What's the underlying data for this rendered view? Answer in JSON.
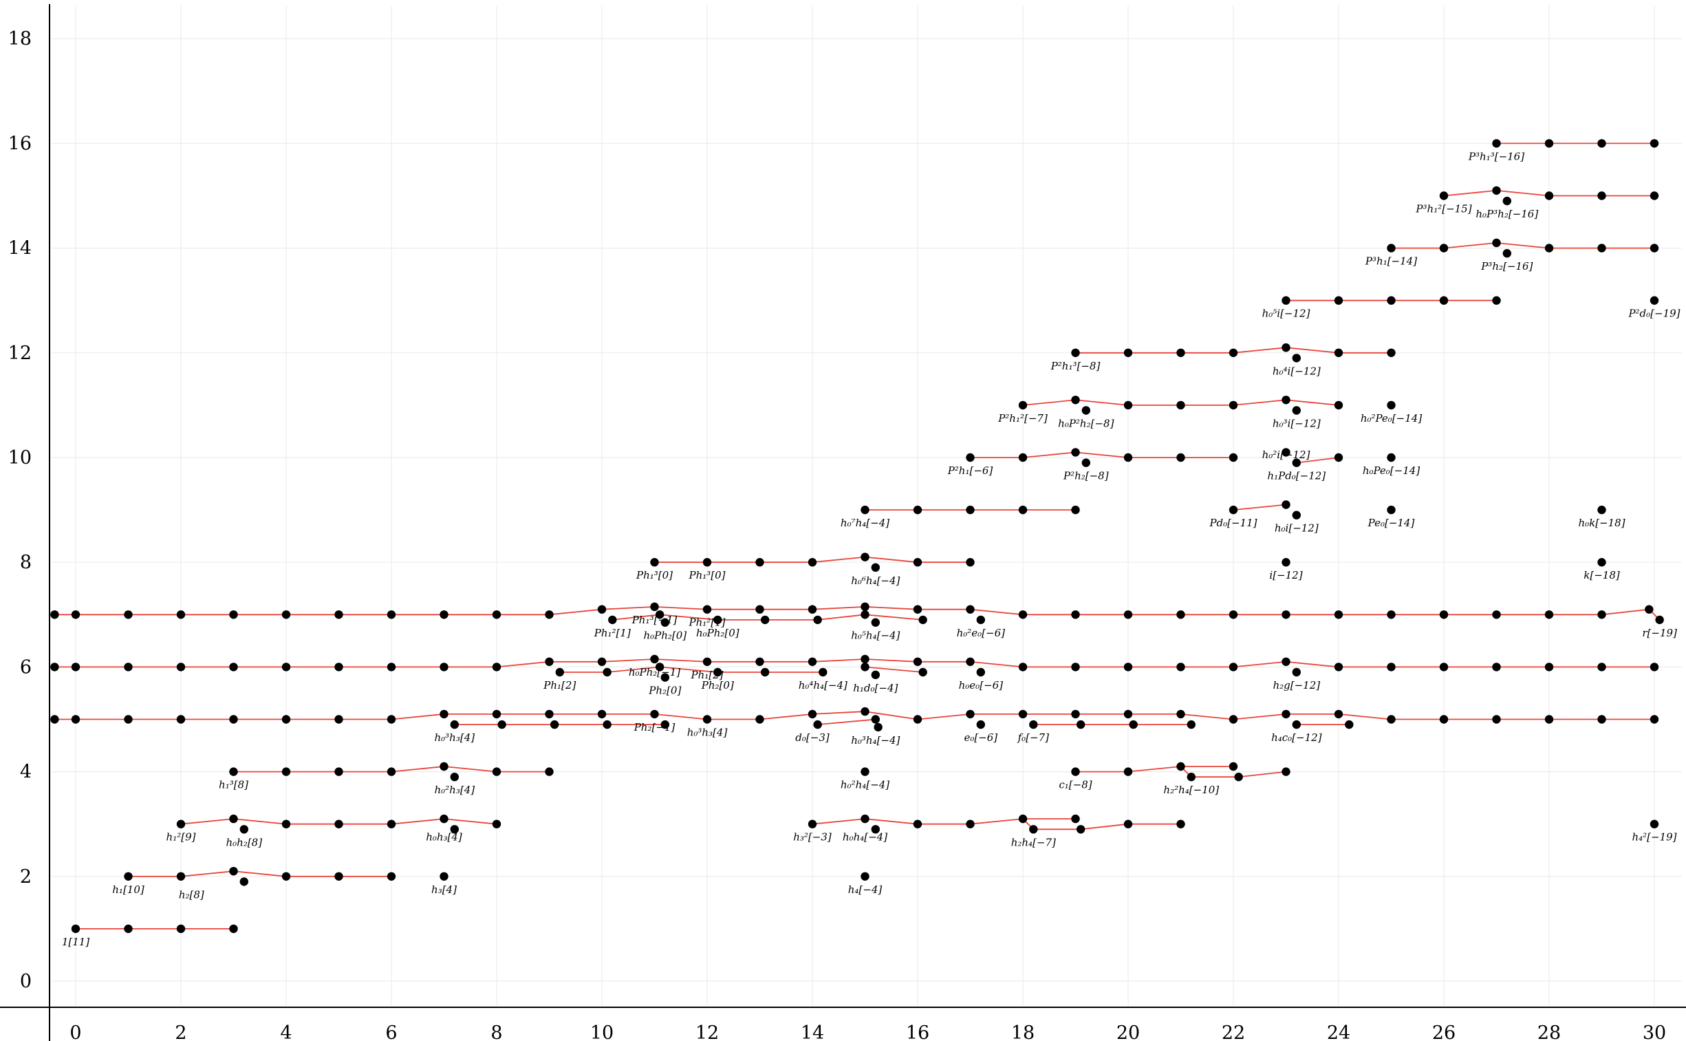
{
  "chart_data": {
    "type": "scatter",
    "title": "",
    "xlabel": "",
    "ylabel": "",
    "xlim": [
      -0.5,
      30.5
    ],
    "ylim": [
      -0.5,
      18.5
    ],
    "xticks": [
      "0",
      "2",
      "4",
      "6",
      "8",
      "10",
      "12",
      "14",
      "16",
      "18",
      "20",
      "22",
      "24",
      "26",
      "28",
      "30"
    ],
    "yticks": [
      "0",
      "2",
      "4",
      "6",
      "8",
      "10",
      "12",
      "14",
      "16",
      "18"
    ],
    "grid": true,
    "line_color": "#e8443a",
    "point_color": "#000000",
    "labels": [
      {
        "x": 0,
        "y": 1,
        "text": "1[11]"
      },
      {
        "x": 1,
        "y": 2,
        "text": "h₁[10]"
      },
      {
        "x": 2.2,
        "y": 1.9,
        "text": "h₂[8]"
      },
      {
        "x": 7,
        "y": 2,
        "text": "h₃[4]"
      },
      {
        "x": 15,
        "y": 2,
        "text": "h₄[−4]"
      },
      {
        "x": 2,
        "y": 3,
        "text": "h₁²[9]"
      },
      {
        "x": 3.2,
        "y": 2.9,
        "text": "h₀h₂[8]"
      },
      {
        "x": 7,
        "y": 3,
        "text": "h₀h₃[4]"
      },
      {
        "x": 14,
        "y": 3,
        "text": "h₃²[−3]"
      },
      {
        "x": 15,
        "y": 3,
        "text": "h₀h₄[−4]"
      },
      {
        "x": 18.2,
        "y": 2.9,
        "text": "h₂h₄[−7]"
      },
      {
        "x": 30,
        "y": 3,
        "text": "h₄²[−19]"
      },
      {
        "x": 3,
        "y": 4,
        "text": "h₁³[8]"
      },
      {
        "x": 7.2,
        "y": 3.9,
        "text": "h₀²h₃[4]"
      },
      {
        "x": 15,
        "y": 4,
        "text": "h₀²h₄[−4]"
      },
      {
        "x": 19,
        "y": 4,
        "text": "c₁[−8]"
      },
      {
        "x": 21.2,
        "y": 3.9,
        "text": "h₂²h₄[−10]"
      },
      {
        "x": 7.2,
        "y": 4.9,
        "text": "h₀³h₃[4]"
      },
      {
        "x": 11,
        "y": 5.1,
        "text": "Ph₂[−1]"
      },
      {
        "x": 12,
        "y": 5,
        "text": "h₀³h₃[4]"
      },
      {
        "x": 14,
        "y": 4.9,
        "text": "d₀[−3]"
      },
      {
        "x": 15.2,
        "y": 4.85,
        "text": "h₀³h₄[−4]"
      },
      {
        "x": 17.2,
        "y": 4.9,
        "text": "e₀[−6]"
      },
      {
        "x": 18.2,
        "y": 4.9,
        "text": "f₀[−7]"
      },
      {
        "x": 23.2,
        "y": 4.9,
        "text": "h₄c₀[−12]"
      },
      {
        "x": 9.2,
        "y": 5.9,
        "text": "Ph₁[2]"
      },
      {
        "x": 11,
        "y": 6.15,
        "text": "h₀Ph₂[−1]"
      },
      {
        "x": 11.2,
        "y": 5.8,
        "text": "Ph₂[0]"
      },
      {
        "x": 12,
        "y": 6.1,
        "text": "Ph₁[2]"
      },
      {
        "x": 12.2,
        "y": 5.9,
        "text": "Ph₂[0]"
      },
      {
        "x": 14.2,
        "y": 5.9,
        "text": "h₀⁴h₄[−4]"
      },
      {
        "x": 15.2,
        "y": 5.85,
        "text": "h₁d₀[−4]"
      },
      {
        "x": 17.2,
        "y": 5.9,
        "text": "h₀e₀[−6]"
      },
      {
        "x": 23.2,
        "y": 5.9,
        "text": "h₂g[−12]"
      },
      {
        "x": 10.2,
        "y": 6.9,
        "text": "Ph₁²[1]"
      },
      {
        "x": 11,
        "y": 7.15,
        "text": "Ph₁³[−1]"
      },
      {
        "x": 11.2,
        "y": 6.85,
        "text": "h₀Ph₂[0]"
      },
      {
        "x": 12,
        "y": 7.1,
        "text": "Ph₁²[1]"
      },
      {
        "x": 12.2,
        "y": 6.9,
        "text": "h₀Ph₂[0]"
      },
      {
        "x": 15.2,
        "y": 6.85,
        "text": "h₀⁵h₄[−4]"
      },
      {
        "x": 17.2,
        "y": 6.9,
        "text": "h₀²e₀[−6]"
      },
      {
        "x": 30.1,
        "y": 6.9,
        "text": "r[−19]"
      },
      {
        "x": 11,
        "y": 8,
        "text": "Ph₁³[0]"
      },
      {
        "x": 12,
        "y": 8,
        "text": "Ph₁³[0]"
      },
      {
        "x": 15.2,
        "y": 7.9,
        "text": "h₀⁶h₄[−4]"
      },
      {
        "x": 23,
        "y": 8,
        "text": "i[−12]"
      },
      {
        "x": 29,
        "y": 8,
        "text": "k[−18]"
      },
      {
        "x": 15,
        "y": 9,
        "text": "h₀⁷h₄[−4]"
      },
      {
        "x": 22,
        "y": 9,
        "text": "Pd₀[−11]"
      },
      {
        "x": 23.2,
        "y": 8.9,
        "text": "h₀i[−12]"
      },
      {
        "x": 25,
        "y": 9,
        "text": "Pe₀[−14]"
      },
      {
        "x": 29,
        "y": 9,
        "text": "h₀k[−18]"
      },
      {
        "x": 17,
        "y": 10,
        "text": "P²h₁[−6]"
      },
      {
        "x": 19.2,
        "y": 9.9,
        "text": "P²h₂[−8]"
      },
      {
        "x": 23,
        "y": 10.3,
        "text": "h₀²i[−12]"
      },
      {
        "x": 23.2,
        "y": 9.9,
        "text": "h₁Pd₀[−12]"
      },
      {
        "x": 25,
        "y": 10,
        "text": "h₀Pe₀[−14]"
      },
      {
        "x": 18,
        "y": 11,
        "text": "P²h₁²[−7]"
      },
      {
        "x": 19.2,
        "y": 10.9,
        "text": "h₀P²h₂[−8]"
      },
      {
        "x": 23.2,
        "y": 10.9,
        "text": "h₀³i[−12]"
      },
      {
        "x": 25,
        "y": 11,
        "text": "h₀²Pe₀[−14]"
      },
      {
        "x": 19,
        "y": 12,
        "text": "P²h₁³[−8]"
      },
      {
        "x": 23.2,
        "y": 11.9,
        "text": "h₀⁴i[−12]"
      },
      {
        "x": 23,
        "y": 13,
        "text": "h₀⁵i[−12]"
      },
      {
        "x": 30,
        "y": 13,
        "text": "P²d₀[−19]"
      },
      {
        "x": 25,
        "y": 14,
        "text": "P³h₁[−14]"
      },
      {
        "x": 27.2,
        "y": 13.9,
        "text": "P³h₂[−16]"
      },
      {
        "x": 26,
        "y": 15,
        "text": "P³h₁²[−15]"
      },
      {
        "x": 27.2,
        "y": 14.9,
        "text": "h₀P³h₂[−16]"
      },
      {
        "x": 27,
        "y": 16,
        "text": "P³h₁³[−16]"
      }
    ]
  }
}
